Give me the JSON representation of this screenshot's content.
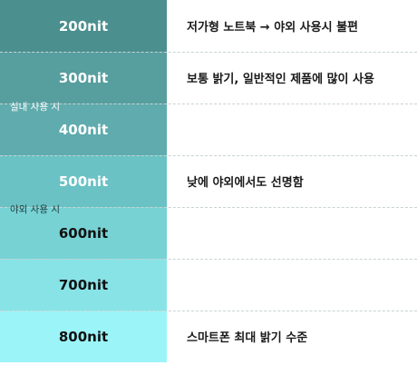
{
  "rows": [
    {
      "nit": "200nit",
      "desc": "저가형 노트북 → 야외 사용시 불편",
      "bg": "#4c8f8f",
      "fg": "#ffffff"
    },
    {
      "nit": "300nit",
      "desc": "보통 밝기, 일반적인 제품에 많이 사용",
      "bg": "#579e9f",
      "fg": "#ffffff"
    },
    {
      "nit": "400nit",
      "desc": "",
      "bg": "#5fabad",
      "fg": "#ffffff"
    },
    {
      "nit": "500nit",
      "desc": "낮에 야외에서도 선명함",
      "bg": "#6ac2c4",
      "fg": "#ffffff"
    },
    {
      "nit": "600nit",
      "desc": "",
      "bg": "#77d2d4",
      "fg": "#111111"
    },
    {
      "nit": "700nit",
      "desc": "",
      "bg": "#88e3e7",
      "fg": "#111111"
    },
    {
      "nit": "800nit",
      "desc": "스마트폰 최대 밝기 수준",
      "bg": "#9bf5f8",
      "fg": "#111111"
    }
  ],
  "groups": {
    "indoor": "실내 사용 시",
    "outdoor": "야외 사용 시"
  }
}
